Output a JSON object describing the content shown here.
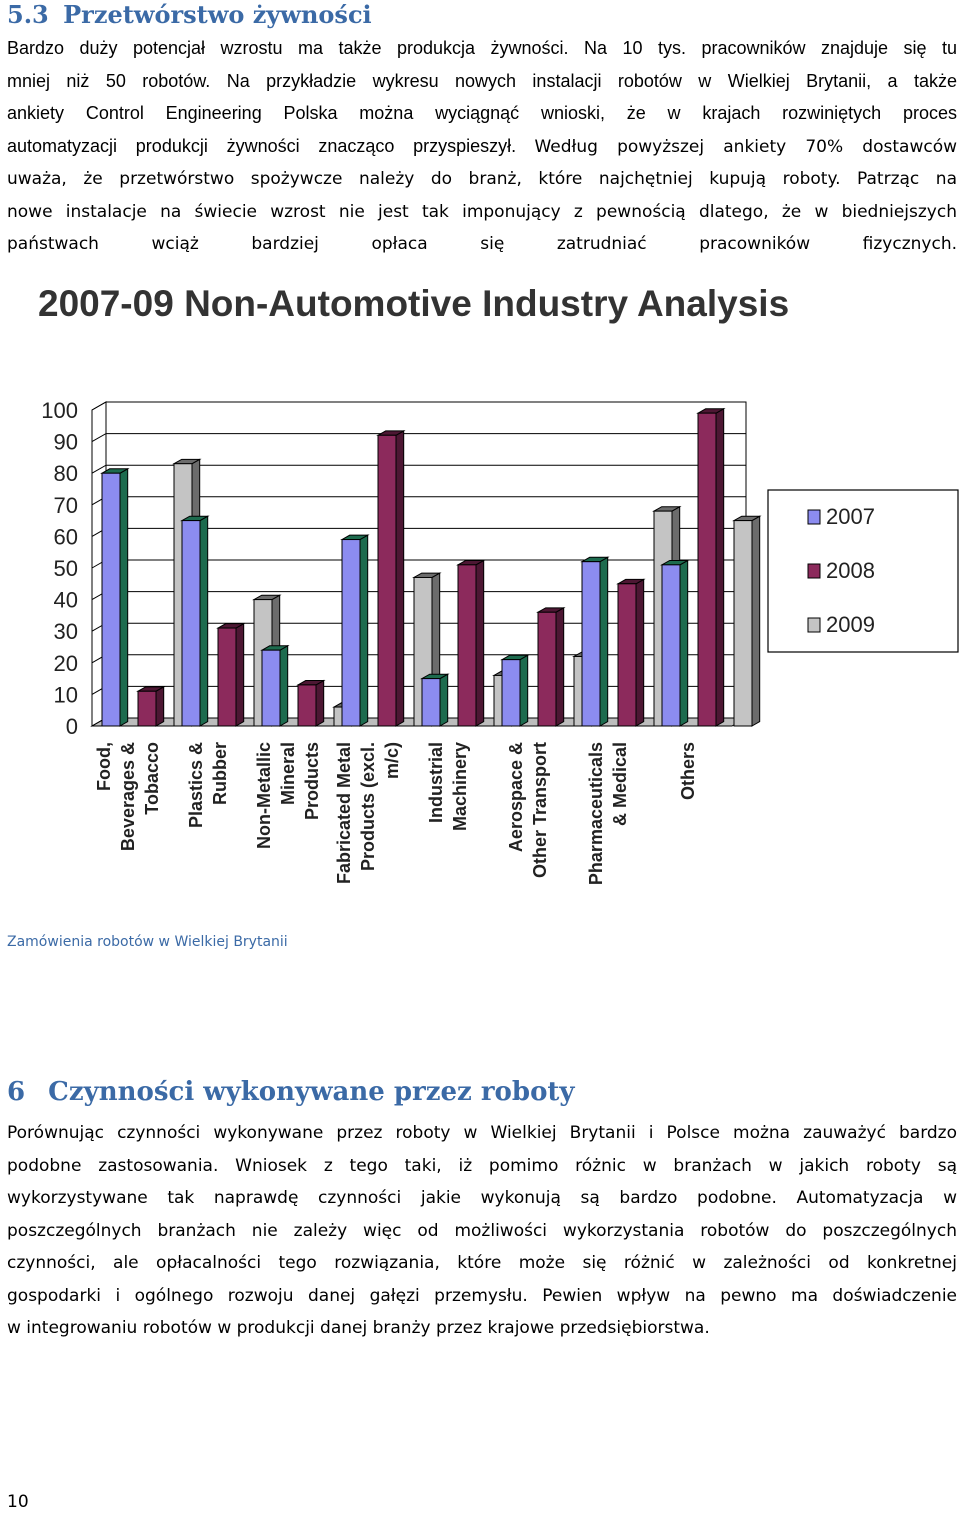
{
  "section_53": {
    "number": "5.3",
    "title": "Przetwórstwo żywności",
    "lines_a": [
      "Bardzo duży potencjał wzrostu ma także produkcja żywności. Na 10 tys. pracowników znajduje się tu",
      "mniej niż 50 robotów. Na przykładzie wykresu nowych instalacji robotów w Wielkiej Brytanii, a także",
      "ankiety Control Engineering Polska można wyciągnąć wnioski, że w krajach rozwiniętych proces",
      "automatyzacji produkcji żywności znacząco przyspieszył."
    ],
    "lines_b": [
      "Według powyższej ankiety 70% dostawców",
      "uważa, że przetwórstwo spożywcze należy do branż, które najchętniej kupują roboty. Patrząc na",
      "nowe instalacje na świecie wzrost nie jest tak imponujący z pewnością dlatego, że w biedniejszych",
      "państwach wciąż bardziej opłaca się zatrudniać pracowników fizycznych."
    ]
  },
  "figure_caption": "Zamówienia robotów w Wielkiej Brytanii",
  "section_6": {
    "number": "6",
    "title": "Czynności wykonywane przez roboty",
    "lines": [
      "Porównując czynności wykonywane przez roboty w Wielkiej Brytanii i Polsce można zauważyć bardzo",
      "podobne zastosowania. Wniosek z tego taki, iż pomimo różnic w branżach w jakich roboty są",
      "wykorzystywane tak naprawdę czynności jakie wykonują są bardzo podobne. Automatyzacja w",
      "poszczególnych branżach nie zależy więc od możliwości wykorzystania robotów do poszczególnych",
      "czynności, ale opłacalności tego rozwiązania, które może się różnić w zależności od konkretnej",
      "gospodarki i ogólnego rozwoju danej gałęzi przemysłu. Pewien wpływ na pewno ma doświadczenie",
      "w integrowaniu robotów w produkcji danej branży przez krajowe przedsiębiorstwa."
    ]
  },
  "page_number": "10",
  "chart_data": {
    "type": "bar",
    "title": "2007-09 Non-Automotive Industry Analysis",
    "xlabel": "",
    "ylabel": "",
    "ylim": [
      0,
      100
    ],
    "yticks": [
      0,
      10,
      20,
      30,
      40,
      50,
      60,
      70,
      80,
      90,
      100
    ],
    "grid": true,
    "legend_position": "right",
    "categories": [
      [
        "Food,",
        "Beverages &",
        "Tobacco"
      ],
      [
        "Plastics &",
        "Rubber"
      ],
      [
        "Non-Metallic",
        "Mineral",
        "Products"
      ],
      [
        "Fabricated Metal",
        "Products (excl.",
        "m/c)"
      ],
      [
        "Industrial",
        "Machinery"
      ],
      [
        "Aerospace &",
        "Other Transport"
      ],
      [
        "Pharmaceuticals",
        "& Medical"
      ],
      [
        "Others"
      ]
    ],
    "series": [
      {
        "name": "2007",
        "color": "#8c8cf0",
        "values": [
          80,
          65,
          24,
          59,
          15,
          21,
          52,
          51
        ]
      },
      {
        "name": "2008",
        "color": "#8c2a5c",
        "values": [
          11,
          31,
          13,
          92,
          51,
          36,
          45,
          99
        ]
      },
      {
        "name": "2009",
        "color": "#c4c4c4",
        "values": [
          83,
          40,
          6,
          47,
          16,
          22,
          68,
          65
        ]
      }
    ],
    "side_color": "#1d6b4e"
  }
}
